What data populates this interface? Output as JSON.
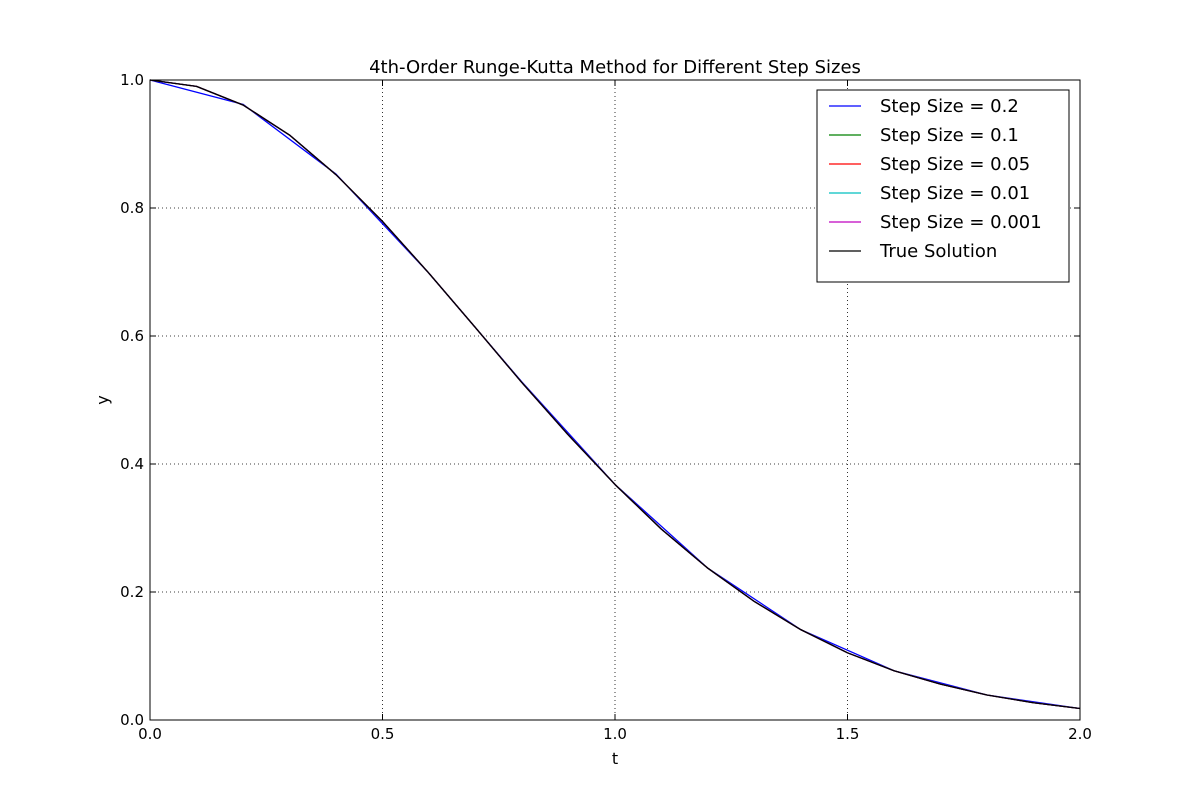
{
  "chart_data": {
    "type": "line",
    "title": "4th-Order Runge-Kutta Method for Different Step Sizes",
    "xlabel": "t",
    "ylabel": "y",
    "xlim": [
      0.0,
      2.0
    ],
    "ylim": [
      0.0,
      1.0
    ],
    "xticks": [
      0.0,
      0.5,
      1.0,
      1.5,
      2.0
    ],
    "xtick_labels": [
      "0.0",
      "0.5",
      "1.0",
      "1.5",
      "2.0"
    ],
    "yticks": [
      0.0,
      0.2,
      0.4,
      0.6,
      0.8,
      1.0
    ],
    "ytick_labels": [
      "0.0",
      "0.2",
      "0.4",
      "0.6",
      "0.8",
      "1.0"
    ],
    "grid": true,
    "grid_style": "dotted",
    "legend_position": "top-right",
    "series": [
      {
        "name": "Step Size = 0.2",
        "color": "#0000ff",
        "x": [
          0.0,
          0.2,
          0.4,
          0.6,
          0.8,
          1.0,
          1.2,
          1.4,
          1.6,
          1.8,
          2.0
        ],
        "y": [
          1.0,
          0.962,
          0.853,
          0.698,
          0.528,
          0.368,
          0.237,
          0.141,
          0.077,
          0.039,
          0.018
        ]
      },
      {
        "name": "Step Size = 0.1",
        "color": "#008000",
        "x": [
          0.0,
          0.1,
          0.2,
          0.3,
          0.4,
          0.5,
          0.6,
          0.7,
          0.8,
          0.9,
          1.0,
          1.1,
          1.2,
          1.3,
          1.4,
          1.5,
          1.6,
          1.7,
          1.8,
          1.9,
          2.0
        ],
        "y": [
          1.0,
          0.99,
          0.961,
          0.914,
          0.852,
          0.779,
          0.698,
          0.613,
          0.527,
          0.445,
          0.368,
          0.298,
          0.237,
          0.185,
          0.141,
          0.105,
          0.077,
          0.056,
          0.039,
          0.027,
          0.018
        ]
      },
      {
        "name": "Step Size = 0.05",
        "color": "#ff0000",
        "x": [
          0.0,
          0.1,
          0.2,
          0.3,
          0.4,
          0.5,
          0.6,
          0.7,
          0.8,
          0.9,
          1.0,
          1.1,
          1.2,
          1.3,
          1.4,
          1.5,
          1.6,
          1.7,
          1.8,
          1.9,
          2.0
        ],
        "y": [
          1.0,
          0.99,
          0.961,
          0.914,
          0.852,
          0.779,
          0.698,
          0.613,
          0.527,
          0.445,
          0.368,
          0.298,
          0.237,
          0.185,
          0.141,
          0.105,
          0.077,
          0.056,
          0.039,
          0.027,
          0.018
        ]
      },
      {
        "name": "Step Size = 0.01",
        "color": "#00bfbf",
        "x": [
          0.0,
          0.1,
          0.2,
          0.3,
          0.4,
          0.5,
          0.6,
          0.7,
          0.8,
          0.9,
          1.0,
          1.1,
          1.2,
          1.3,
          1.4,
          1.5,
          1.6,
          1.7,
          1.8,
          1.9,
          2.0
        ],
        "y": [
          1.0,
          0.99,
          0.961,
          0.914,
          0.852,
          0.779,
          0.698,
          0.613,
          0.527,
          0.445,
          0.368,
          0.298,
          0.237,
          0.185,
          0.141,
          0.105,
          0.077,
          0.056,
          0.039,
          0.027,
          0.018
        ]
      },
      {
        "name": "Step Size = 0.001",
        "color": "#bf00bf",
        "x": [
          0.0,
          0.1,
          0.2,
          0.3,
          0.4,
          0.5,
          0.6,
          0.7,
          0.8,
          0.9,
          1.0,
          1.1,
          1.2,
          1.3,
          1.4,
          1.5,
          1.6,
          1.7,
          1.8,
          1.9,
          2.0
        ],
        "y": [
          1.0,
          0.99,
          0.961,
          0.914,
          0.852,
          0.779,
          0.698,
          0.613,
          0.527,
          0.445,
          0.368,
          0.298,
          0.237,
          0.185,
          0.141,
          0.105,
          0.077,
          0.056,
          0.039,
          0.027,
          0.018
        ]
      },
      {
        "name": "True Solution",
        "color": "#000000",
        "x": [
          0.0,
          0.1,
          0.2,
          0.3,
          0.4,
          0.5,
          0.6,
          0.7,
          0.8,
          0.9,
          1.0,
          1.1,
          1.2,
          1.3,
          1.4,
          1.5,
          1.6,
          1.7,
          1.8,
          1.9,
          2.0
        ],
        "y": [
          1.0,
          0.99,
          0.961,
          0.914,
          0.852,
          0.779,
          0.698,
          0.613,
          0.527,
          0.445,
          0.368,
          0.298,
          0.237,
          0.185,
          0.141,
          0.105,
          0.077,
          0.056,
          0.039,
          0.027,
          0.018
        ]
      }
    ]
  }
}
